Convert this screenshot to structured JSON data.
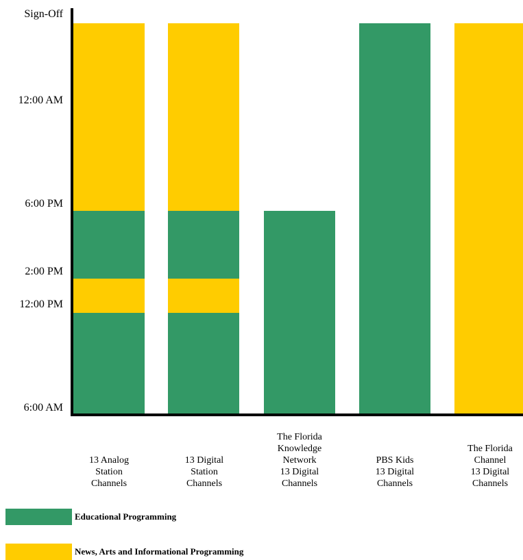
{
  "chart_data": {
    "type": "bar",
    "stacked": true,
    "orientation": "vertical",
    "title": "",
    "xlabel": "",
    "ylabel": "",
    "y_tick_labels": [
      "Sign-Off",
      "12:00 AM",
      "6:00 PM",
      "2:00 PM",
      "12:00 PM",
      "6:00 AM"
    ],
    "categories": [
      [
        "13 Analog",
        "Station",
        "Channels"
      ],
      [
        "13 Digital",
        "Station",
        "Channels"
      ],
      [
        "The Florida",
        "Knowledge",
        "Network",
        "13 Digital",
        "Channels"
      ],
      [
        "PBS Kids",
        "13 Digital",
        "Channels"
      ],
      [
        "The Florida",
        "Channel",
        "13 Digital",
        "Channels"
      ]
    ],
    "segments": [
      [
        {
          "from": "6:00 AM",
          "to": "12:00 PM",
          "series": "Educational Programming"
        },
        {
          "from": "12:00 PM",
          "to": "2:00 PM",
          "series": "News, Arts and Informational Programming"
        },
        {
          "from": "2:00 PM",
          "to": "6:00 PM",
          "series": "Educational Programming"
        },
        {
          "from": "6:00 PM",
          "to": "Sign-Off",
          "series": "News, Arts and Informational Programming"
        }
      ],
      [
        {
          "from": "6:00 AM",
          "to": "12:00 PM",
          "series": "Educational Programming"
        },
        {
          "from": "12:00 PM",
          "to": "2:00 PM",
          "series": "News, Arts and Informational Programming"
        },
        {
          "from": "2:00 PM",
          "to": "6:00 PM",
          "series": "Educational Programming"
        },
        {
          "from": "6:00 PM",
          "to": "Sign-Off",
          "series": "News, Arts and Informational Programming"
        }
      ],
      [
        {
          "from": "6:00 AM",
          "to": "6:00 PM",
          "series": "Educational Programming"
        }
      ],
      [
        {
          "from": "6:00 AM",
          "to": "Sign-Off",
          "series": "Educational Programming"
        }
      ],
      [
        {
          "from": "6:00 AM",
          "to": "Sign-Off",
          "series": "News, Arts and Informational Programming"
        }
      ]
    ],
    "series": [
      {
        "name": "Educational Programming",
        "color": "#339966"
      },
      {
        "name": "News, Arts and Informational Programming",
        "color": "#FFCC00"
      }
    ],
    "grid": false,
    "legend_position": "bottom-left"
  },
  "legend": {
    "educational": "Educational Programming",
    "news": "News, Arts and Informational Programming"
  }
}
